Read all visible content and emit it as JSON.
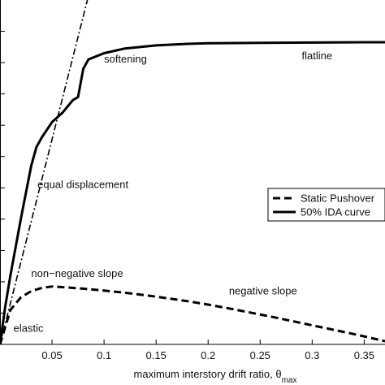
{
  "chart_data": {
    "type": "line",
    "title": "",
    "xlabel": "maximum interstory drift ratio,",
    "xlabel_symbol": "θ",
    "xlabel_subscript": "max",
    "ylabel": "",
    "xlim": [
      0,
      0.37
    ],
    "ylim": [
      0,
      1.1
    ],
    "x_ticks": [
      0.05,
      0.1,
      0.15,
      0.2,
      0.25,
      0.3,
      0.35
    ],
    "x_tick_labels": [
      "0.05",
      "0.1",
      "0.15",
      "0.2",
      "0.25",
      "0.3",
      "0.35"
    ],
    "y_ticks": [
      0.1,
      0.2,
      0.3,
      0.4,
      0.5,
      0.6,
      0.7,
      0.8,
      0.9,
      1.0
    ],
    "grid": false,
    "legend_position": "right",
    "series": [
      {
        "name": "Static Pushover",
        "style": "dashed",
        "x": [
          0.0,
          0.01,
          0.02,
          0.03,
          0.04,
          0.05,
          0.06,
          0.08,
          0.1,
          0.12,
          0.14,
          0.16,
          0.18,
          0.2,
          0.22,
          0.24,
          0.26,
          0.28,
          0.3,
          0.32,
          0.34,
          0.36,
          0.37
        ],
        "y": [
          0.0,
          0.11,
          0.15,
          0.17,
          0.18,
          0.185,
          0.183,
          0.178,
          0.172,
          0.165,
          0.157,
          0.148,
          0.138,
          0.127,
          0.115,
          0.102,
          0.089,
          0.075,
          0.061,
          0.047,
          0.033,
          0.018,
          0.01
        ]
      },
      {
        "name": "50% IDA curve",
        "style": "solid",
        "x": [
          0.0,
          0.005,
          0.01,
          0.02,
          0.03,
          0.035,
          0.04,
          0.05,
          0.06,
          0.07,
          0.075,
          0.08,
          0.085,
          0.1,
          0.12,
          0.15,
          0.18,
          0.2,
          0.25,
          0.3,
          0.35,
          0.37
        ],
        "y": [
          0.0,
          0.12,
          0.22,
          0.4,
          0.57,
          0.63,
          0.66,
          0.71,
          0.74,
          0.78,
          0.79,
          0.88,
          0.91,
          0.93,
          0.945,
          0.955,
          0.96,
          0.962,
          0.963,
          0.964,
          0.965,
          0.965
        ]
      },
      {
        "name": "",
        "style": "dash-dot",
        "x": [
          0.0,
          0.084
        ],
        "y": [
          0.0,
          1.1
        ]
      }
    ],
    "legend": [
      "Static Pushover",
      "50% IDA curve"
    ],
    "annotations": [
      {
        "text": "softening",
        "x": 0.1,
        "y": 0.9
      },
      {
        "text": "flatline",
        "x": 0.29,
        "y": 0.91
      },
      {
        "text": "equal displacement",
        "x": 0.036,
        "y": 0.5
      },
      {
        "text": "non−negative slope",
        "x": 0.03,
        "y": 0.215
      },
      {
        "text": "negative slope",
        "x": 0.22,
        "y": 0.16
      },
      {
        "text": "elastic",
        "x": 0.013,
        "y": 0.04
      }
    ]
  }
}
